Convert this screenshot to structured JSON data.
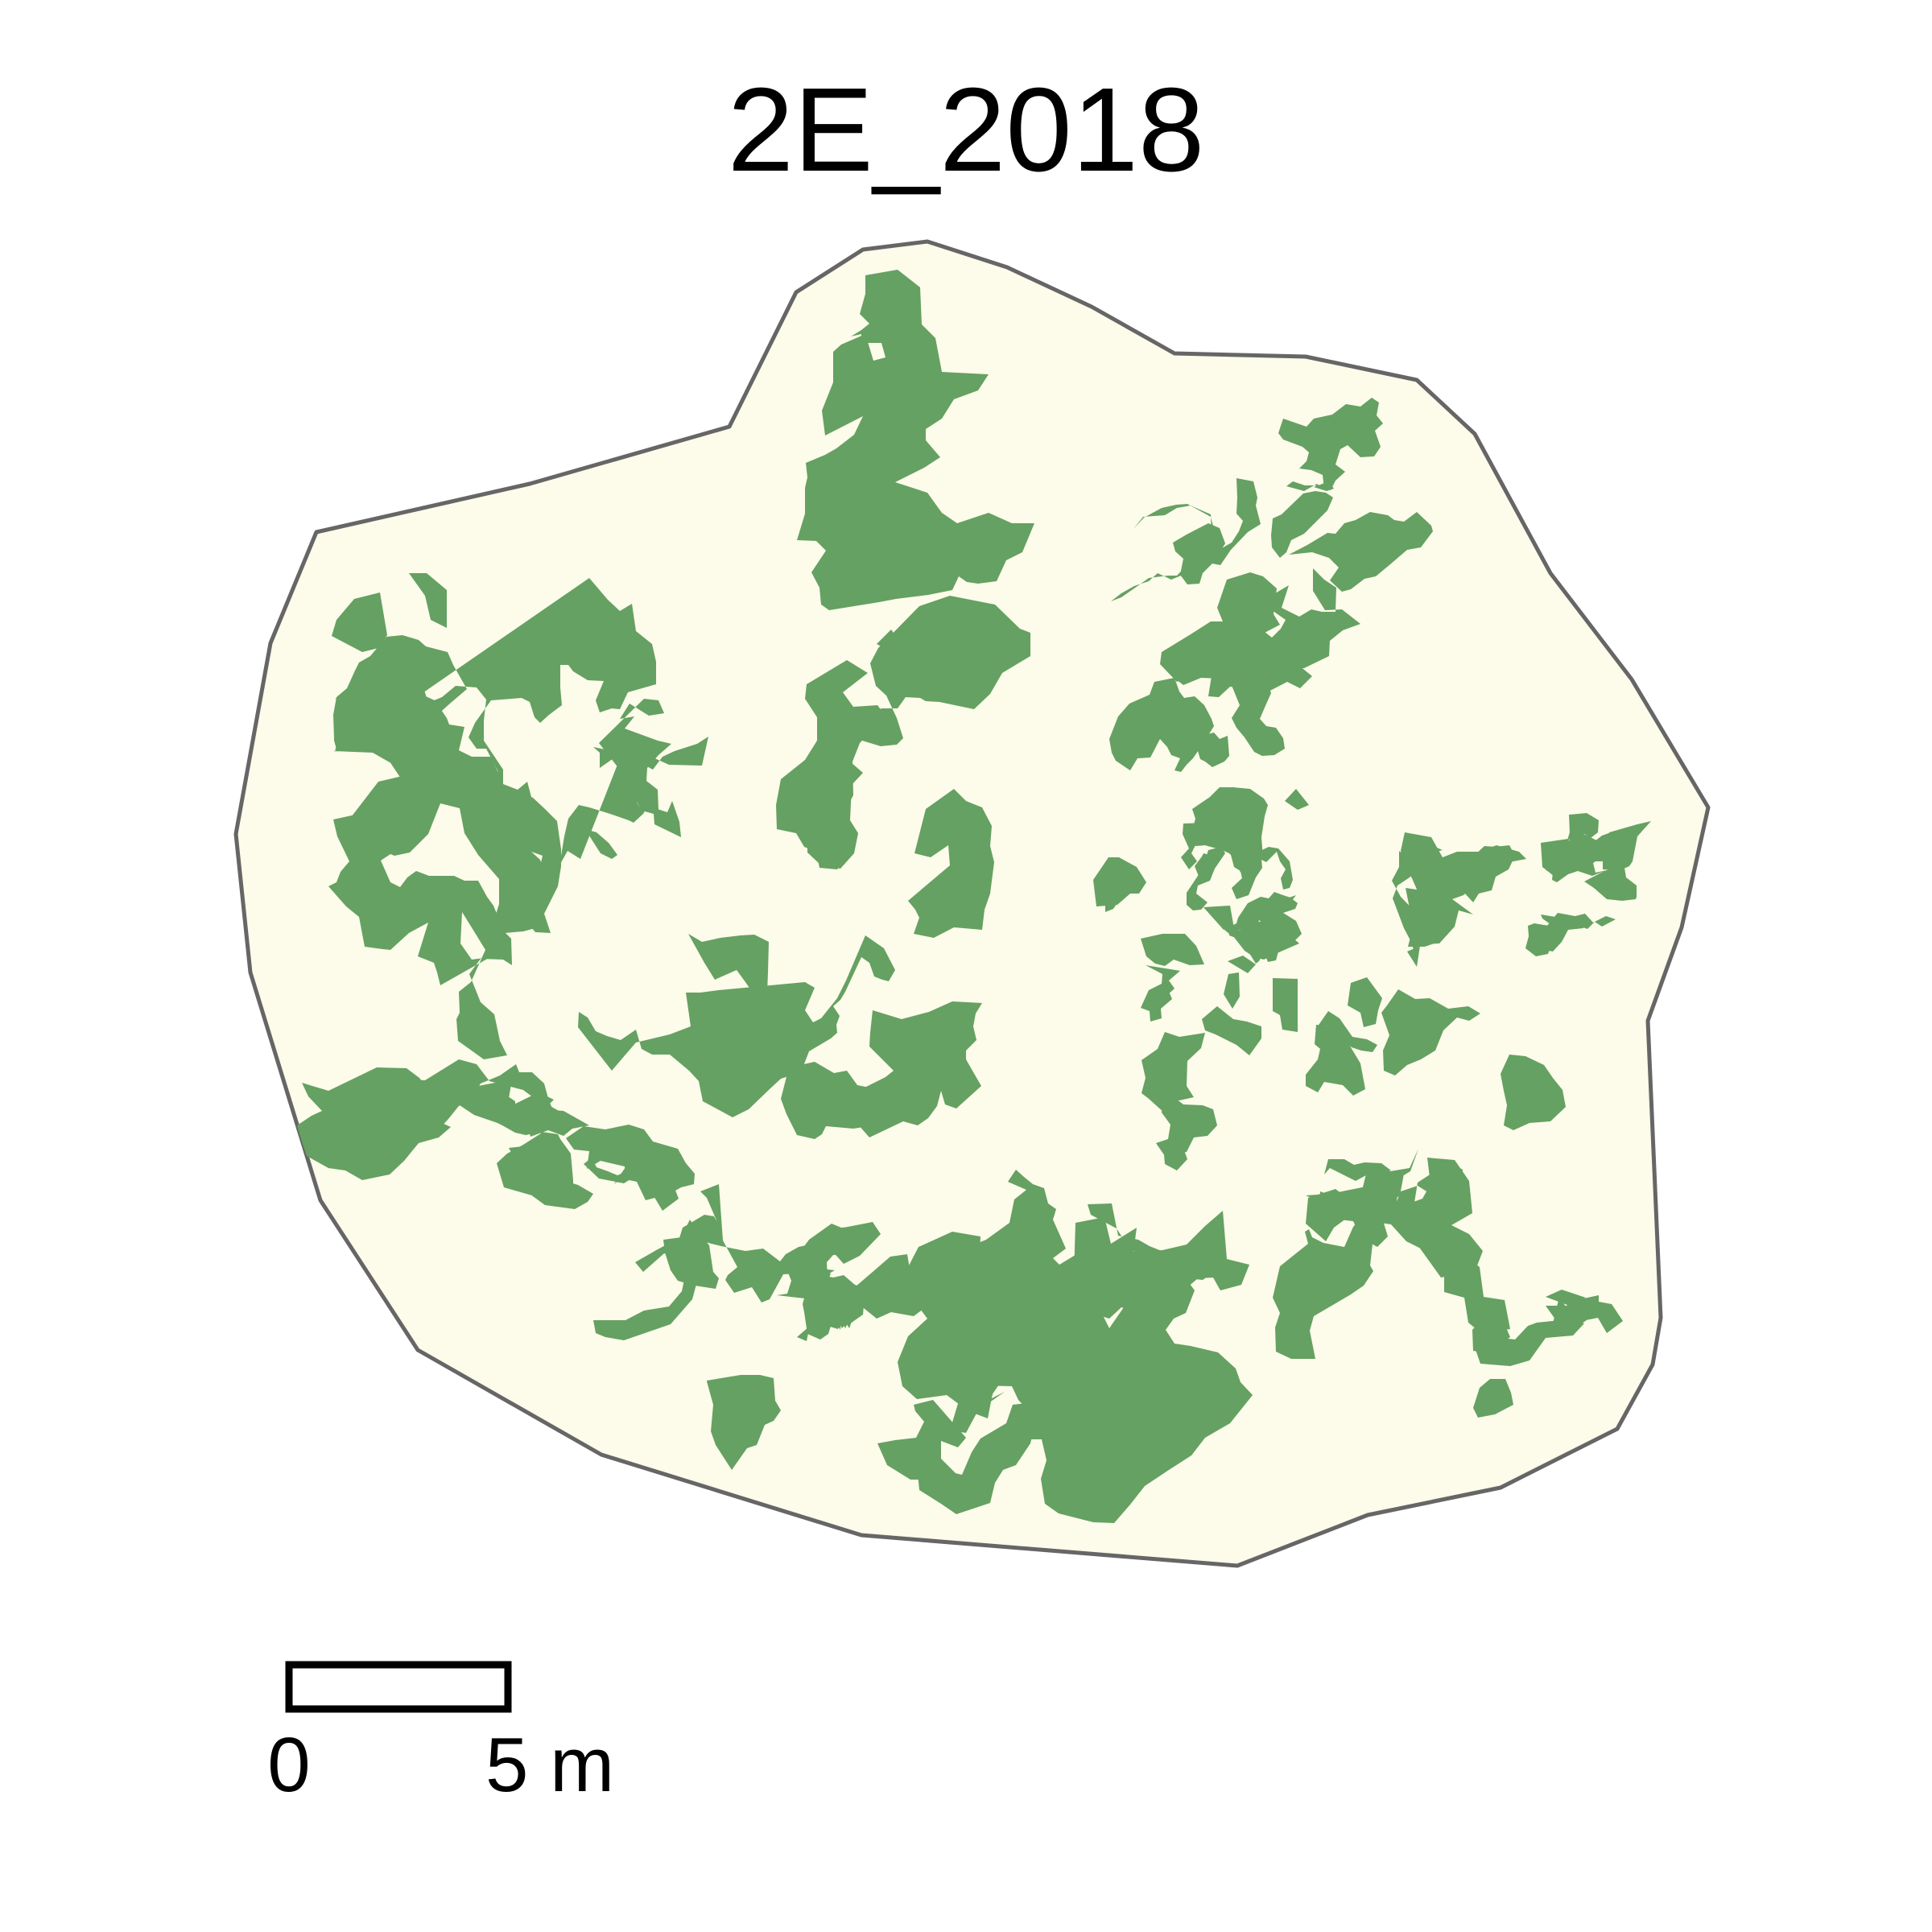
{
  "map": {
    "title": "2E_2018",
    "colors": {
      "plot_fill": "#fdfbea",
      "plot_outline": "#666666",
      "patch_fill": "#65a162",
      "scalebar_stroke": "#000000"
    },
    "scale_bar": {
      "start_label": "0",
      "end_label": "5 m",
      "length_m": 5
    }
  }
}
